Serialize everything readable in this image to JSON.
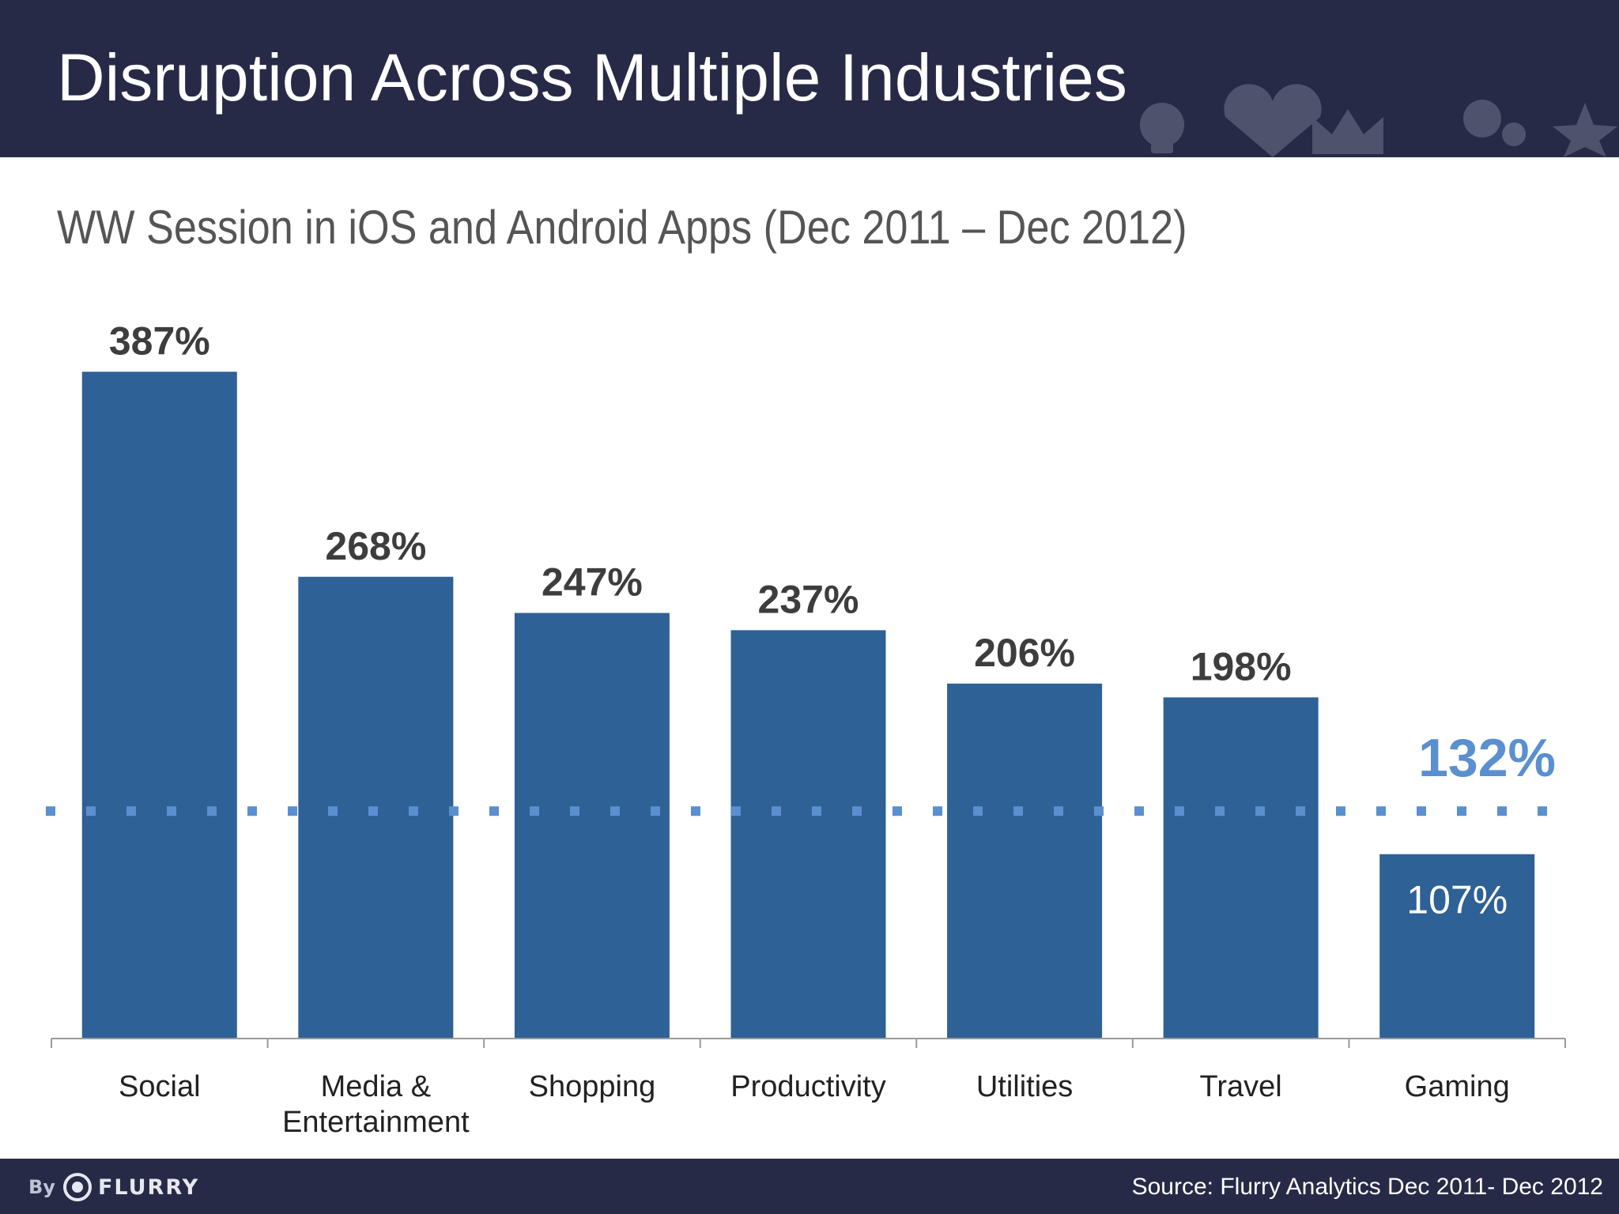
{
  "header": {
    "title": "Disruption Across Multiple Industries",
    "decoration_icons": [
      "skull-icon",
      "heart-icon",
      "crown-icon",
      "gears-icon",
      "star-icon"
    ]
  },
  "subtitle": "WW Session in iOS and Android Apps (Dec 2011 – Dec 2012)",
  "chart_data": {
    "type": "bar",
    "title": "WW Session in iOS and Android Apps (Dec 2011 – Dec 2012)",
    "categories": [
      "Social",
      "Media & Entertainment",
      "Shopping",
      "Productivity",
      "Utilities",
      "Travel",
      "Gaming"
    ],
    "category_lines": [
      [
        "Social"
      ],
      [
        "Media &",
        "Entertainment"
      ],
      [
        "Shopping"
      ],
      [
        "Productivity"
      ],
      [
        "Utilities"
      ],
      [
        "Travel"
      ],
      [
        "Gaming"
      ]
    ],
    "values": [
      387,
      268,
      247,
      237,
      206,
      198,
      107
    ],
    "value_labels": [
      "387%",
      "268%",
      "247%",
      "237%",
      "206%",
      "198%",
      "107%"
    ],
    "reference_line": {
      "value": 132,
      "label": "132%",
      "style": "dotted"
    },
    "ylim": [
      0,
      400
    ],
    "xlabel": "",
    "ylabel": "",
    "grid": false,
    "bar_color": "#2e6196",
    "label_color": "#3d3d3d",
    "reference_color": "#5a8fd0"
  },
  "footer": {
    "logo_by": "By",
    "logo_name": "FLURRY",
    "source": "Source: Flurry Analytics  Dec 2011- Dec 2012"
  }
}
